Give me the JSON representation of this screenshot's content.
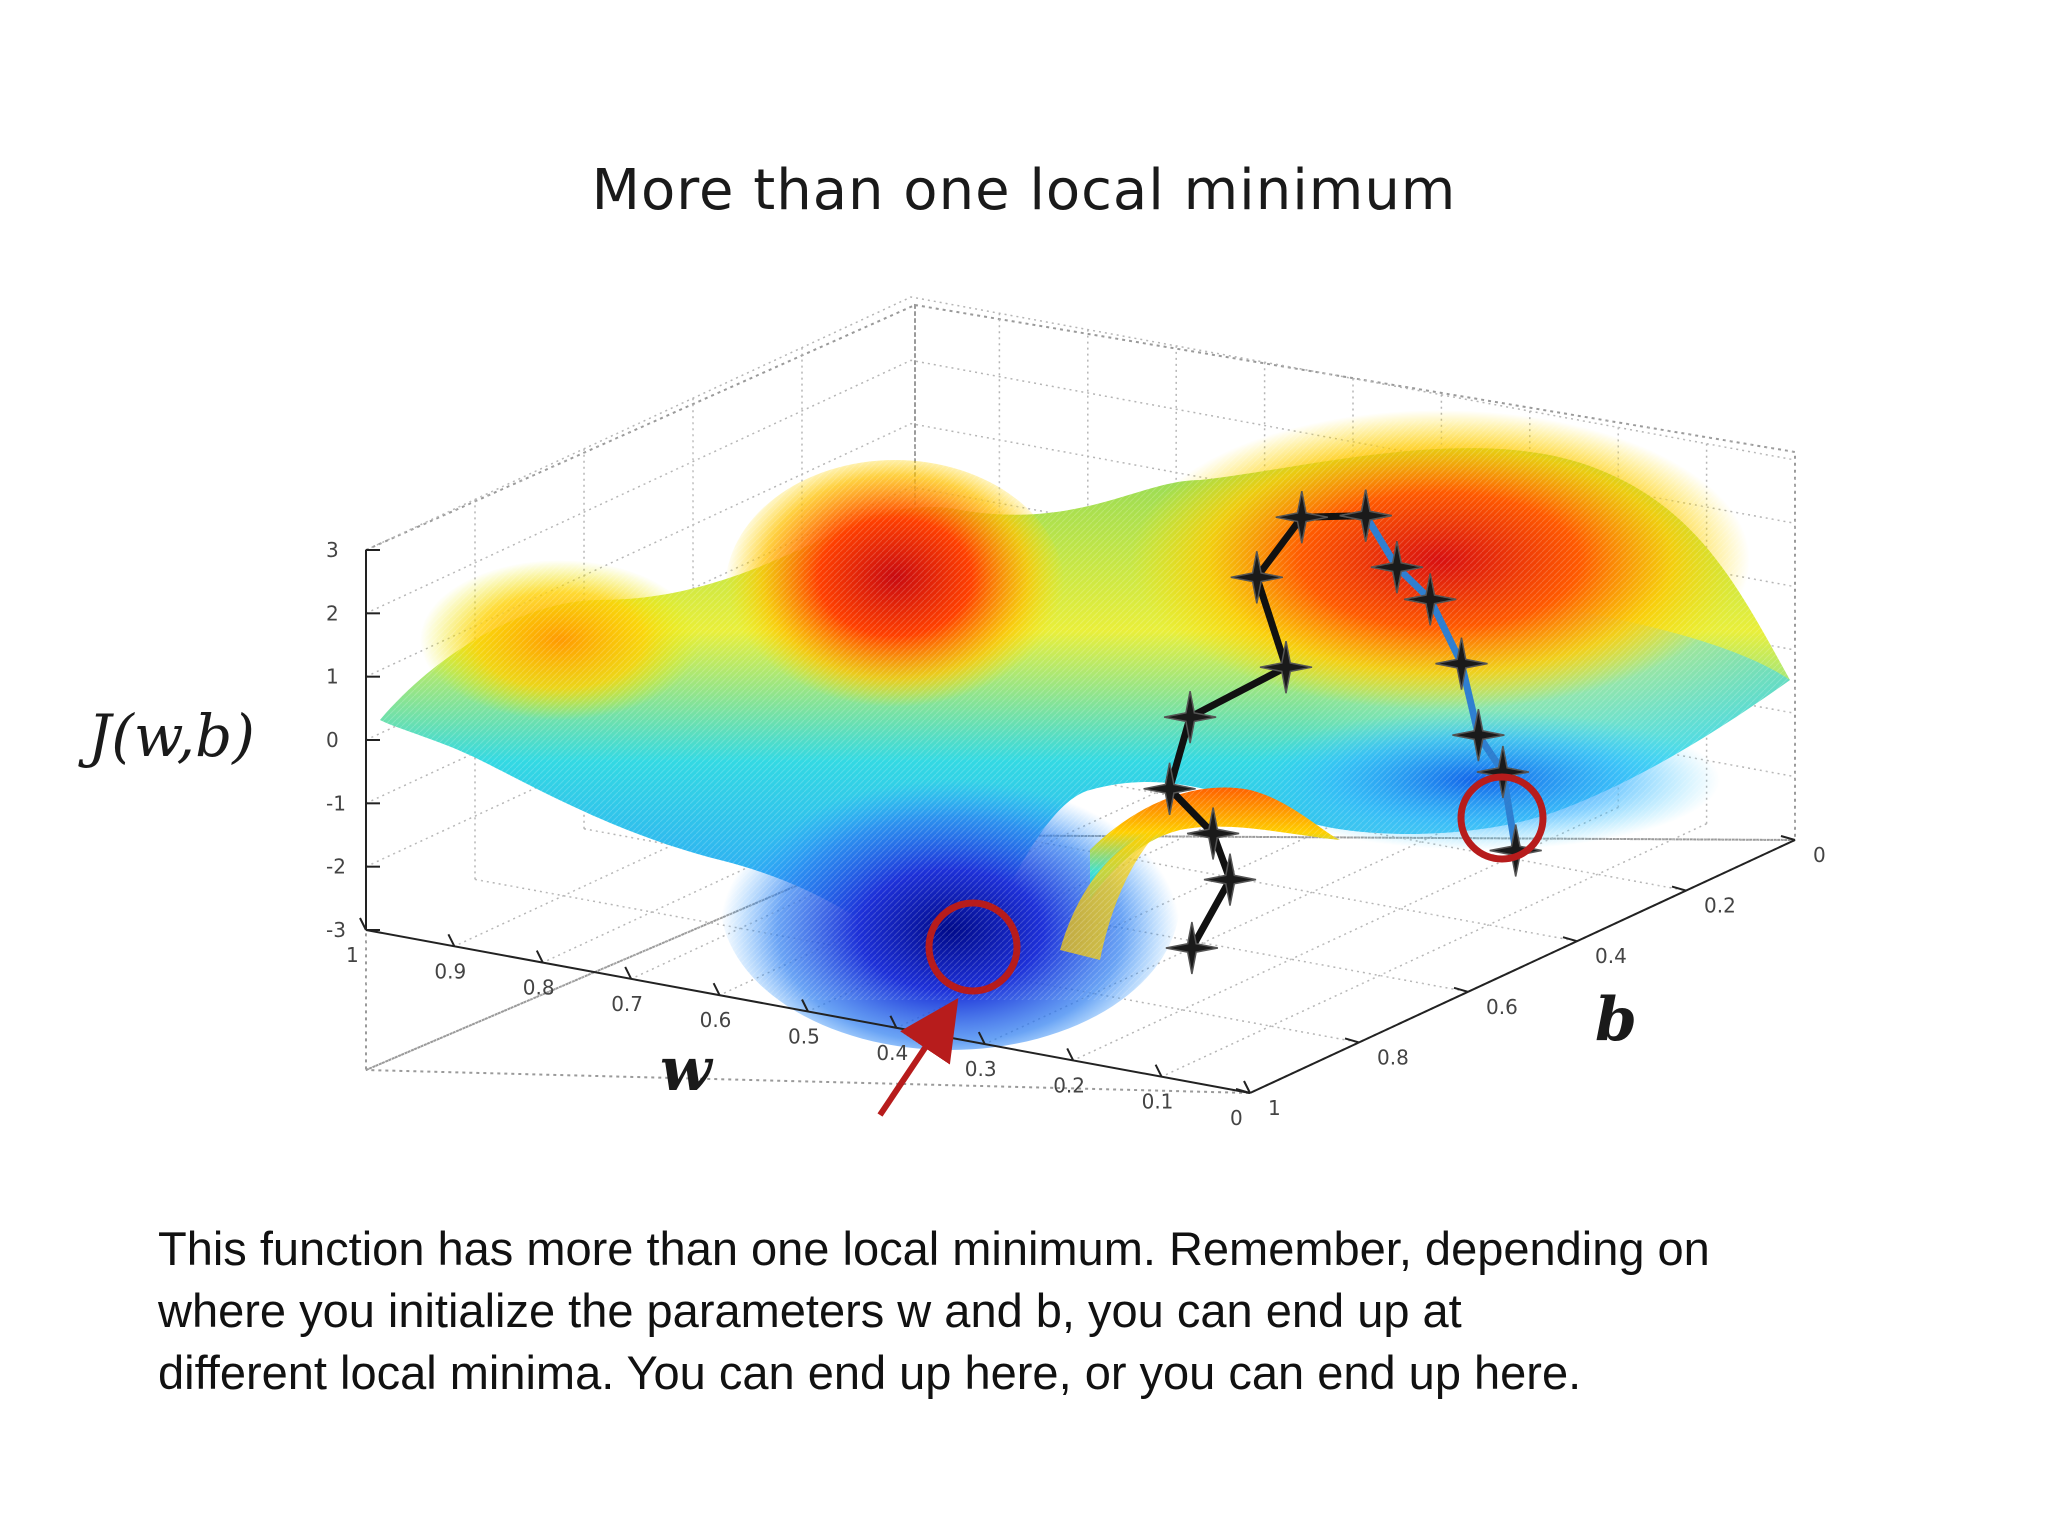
{
  "slide": {
    "title": "More than one local minimum",
    "caption_lines": [
      "This function has more than one local minimum. Remember, depending on",
      "where you initialize the parameters w and b, you can end up at",
      "different local minima. You can end up here, or you can end up here."
    ]
  },
  "chart_data": {
    "type": "surface3d",
    "title": "More than one local minimum",
    "zlabel": "J(w,b)",
    "xlabel": "w",
    "ylabel": "b",
    "z_ticks": [
      "3",
      "2",
      "1",
      "0",
      "-1",
      "-2",
      "-3"
    ],
    "w_ticks": [
      "1",
      "0.9",
      "0.8",
      "0.7",
      "0.6",
      "0.5",
      "0.4",
      "0.3",
      "0.2",
      "0.1",
      "0"
    ],
    "b_ticks": [
      "0",
      "0.2",
      "0.4",
      "0.6",
      "0.8",
      "1"
    ],
    "zlim": [
      -3,
      3
    ],
    "wlim": [
      1,
      0
    ],
    "blim": [
      0,
      1
    ],
    "colormap": "jet",
    "colors": {
      "path_black": "#111111",
      "path_blue": "#2f7fd0",
      "highlight_red": "#b71c1c",
      "grid": "#9a9a9a"
    },
    "path_black": {
      "color": "black",
      "points": [
        {
          "w": 0.35,
          "b": 0.22,
          "z": 2.1
        },
        {
          "w": 0.41,
          "b": 0.24,
          "z": 2.0
        },
        {
          "w": 0.43,
          "b": 0.29,
          "z": 1.2
        },
        {
          "w": 0.36,
          "b": 0.35,
          "z": 0.2
        },
        {
          "w": 0.45,
          "b": 0.38,
          "z": -0.7
        },
        {
          "w": 0.43,
          "b": 0.45,
          "z": -1.5
        },
        {
          "w": 0.35,
          "b": 0.5,
          "z": -1.8
        },
        {
          "w": 0.3,
          "b": 0.55,
          "z": -2.2
        },
        {
          "w": 0.3,
          "b": 0.62,
          "z": -3.0
        }
      ]
    },
    "path_blue": {
      "color": "blue",
      "points": [
        {
          "w": 0.35,
          "b": 0.22,
          "z": 2.1
        },
        {
          "w": 0.29,
          "b": 0.26,
          "z": 1.6
        },
        {
          "w": 0.24,
          "b": 0.28,
          "z": 1.3
        },
        {
          "w": 0.18,
          "b": 0.32,
          "z": 0.6
        },
        {
          "w": 0.13,
          "b": 0.37,
          "z": -0.2
        },
        {
          "w": 0.09,
          "b": 0.39,
          "z": -0.6
        },
        {
          "w": 0.02,
          "b": 0.48,
          "z": -1.3
        }
      ]
    },
    "annotations": [
      {
        "type": "circle",
        "label": "local-minimum-1",
        "target": "path_black_end"
      },
      {
        "type": "circle",
        "label": "local-minimum-2",
        "target": "path_blue_end"
      },
      {
        "type": "arrow",
        "label": "pointer-arrow",
        "target": "local-minimum-1"
      }
    ]
  }
}
